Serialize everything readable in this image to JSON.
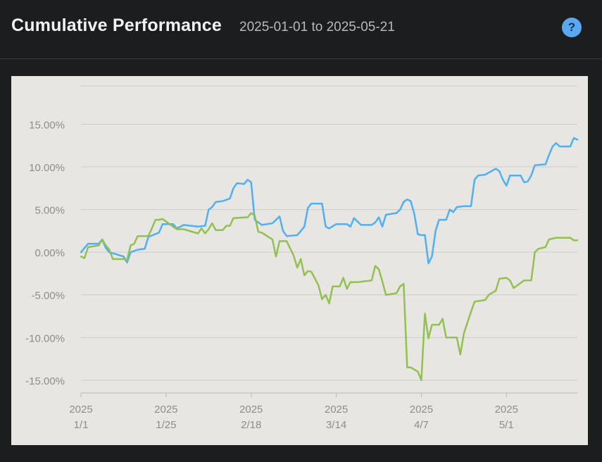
{
  "header": {
    "title": "Cumulative Performance",
    "date_range": "2025-01-01 to 2025-05-21",
    "help_icon": "question-mark-icon",
    "help_glyph": "?"
  },
  "chart_data": {
    "type": "line",
    "title": "",
    "xlabel": "",
    "ylabel": "",
    "y_unit": "%",
    "ylim": [
      -16.5,
      19.5
    ],
    "y_ticks": [
      -15,
      -10,
      -5,
      0,
      5,
      10,
      15
    ],
    "y_tick_labels": [
      "-15.00%",
      "-10.00%",
      "-5.00%",
      "0.00%",
      "5.00%",
      "10.00%",
      "15.00%"
    ],
    "xlim": [
      "2025-01-01",
      "2025-05-21"
    ],
    "x_ticks": [
      {
        "date": "2025-01-01",
        "year": "2025",
        "label": "1/1"
      },
      {
        "date": "2025-01-25",
        "year": "2025",
        "label": "1/25"
      },
      {
        "date": "2025-02-18",
        "year": "2025",
        "label": "2/18"
      },
      {
        "date": "2025-03-14",
        "year": "2025",
        "label": "3/14"
      },
      {
        "date": "2025-04-07",
        "year": "2025",
        "label": "4/7"
      },
      {
        "date": "2025-05-01",
        "year": "2025",
        "label": "5/1"
      }
    ],
    "grid": true,
    "legend": "none",
    "series": [
      {
        "color": "#4fb0f5",
        "points": [
          [
            "2025-01-01",
            0.0
          ],
          [
            "2025-01-03",
            1.0
          ],
          [
            "2025-01-06",
            1.0
          ],
          [
            "2025-01-07",
            1.5
          ],
          [
            "2025-01-08",
            0.5
          ],
          [
            "2025-01-09",
            0.0
          ],
          [
            "2025-01-13",
            -0.5
          ],
          [
            "2025-01-14",
            -1.2
          ],
          [
            "2025-01-15",
            0.0
          ],
          [
            "2025-01-17",
            0.3
          ],
          [
            "2025-01-19",
            0.4
          ],
          [
            "2025-01-20",
            1.8
          ],
          [
            "2025-01-23",
            2.3
          ],
          [
            "2025-01-24",
            3.3
          ],
          [
            "2025-01-27",
            3.3
          ],
          [
            "2025-01-28",
            2.8
          ],
          [
            "2025-01-30",
            3.2
          ],
          [
            "2025-02-03",
            3.0
          ],
          [
            "2025-02-05",
            3.1
          ],
          [
            "2025-02-06",
            5.0
          ],
          [
            "2025-02-07",
            5.3
          ],
          [
            "2025-02-08",
            5.9
          ],
          [
            "2025-02-10",
            6.0
          ],
          [
            "2025-02-12",
            6.3
          ],
          [
            "2025-02-13",
            7.5
          ],
          [
            "2025-02-14",
            8.1
          ],
          [
            "2025-02-16",
            8.0
          ],
          [
            "2025-02-17",
            8.5
          ],
          [
            "2025-02-18",
            8.2
          ],
          [
            "2025-02-19",
            3.8
          ],
          [
            "2025-02-20",
            3.5
          ],
          [
            "2025-02-21",
            3.2
          ],
          [
            "2025-02-24",
            3.4
          ],
          [
            "2025-02-26",
            4.2
          ],
          [
            "2025-02-27",
            2.5
          ],
          [
            "2025-02-28",
            1.9
          ],
          [
            "2025-03-03",
            2.0
          ],
          [
            "2025-03-05",
            3.0
          ],
          [
            "2025-03-06",
            5.2
          ],
          [
            "2025-03-07",
            5.7
          ],
          [
            "2025-03-10",
            5.7
          ],
          [
            "2025-03-11",
            3.0
          ],
          [
            "2025-03-12",
            2.8
          ],
          [
            "2025-03-14",
            3.3
          ],
          [
            "2025-03-17",
            3.3
          ],
          [
            "2025-03-18",
            3.0
          ],
          [
            "2025-03-19",
            4.0
          ],
          [
            "2025-03-21",
            3.2
          ],
          [
            "2025-03-24",
            3.2
          ],
          [
            "2025-03-25",
            3.5
          ],
          [
            "2025-03-26",
            4.1
          ],
          [
            "2025-03-27",
            3.0
          ],
          [
            "2025-03-28",
            4.4
          ],
          [
            "2025-03-31",
            4.6
          ],
          [
            "2025-04-01",
            5.0
          ],
          [
            "2025-04-02",
            5.9
          ],
          [
            "2025-04-03",
            6.2
          ],
          [
            "2025-04-04",
            6.0
          ],
          [
            "2025-04-05",
            4.5
          ],
          [
            "2025-04-06",
            2.1
          ],
          [
            "2025-04-07",
            2.0
          ],
          [
            "2025-04-08",
            2.0
          ],
          [
            "2025-04-09",
            -1.3
          ],
          [
            "2025-04-10",
            -0.5
          ],
          [
            "2025-04-11",
            2.5
          ],
          [
            "2025-04-12",
            3.8
          ],
          [
            "2025-04-14",
            3.8
          ],
          [
            "2025-04-15",
            5.0
          ],
          [
            "2025-04-16",
            4.7
          ],
          [
            "2025-04-17",
            5.3
          ],
          [
            "2025-04-19",
            5.4
          ],
          [
            "2025-04-21",
            5.4
          ],
          [
            "2025-04-22",
            8.5
          ],
          [
            "2025-04-23",
            9.0
          ],
          [
            "2025-04-25",
            9.1
          ],
          [
            "2025-04-28",
            9.8
          ],
          [
            "2025-04-29",
            9.5
          ],
          [
            "2025-04-30",
            8.5
          ],
          [
            "2025-05-01",
            7.8
          ],
          [
            "2025-05-02",
            9.0
          ],
          [
            "2025-05-05",
            9.0
          ],
          [
            "2025-05-06",
            8.2
          ],
          [
            "2025-05-07",
            8.3
          ],
          [
            "2025-05-08",
            9.0
          ],
          [
            "2025-05-09",
            10.2
          ],
          [
            "2025-05-12",
            10.3
          ],
          [
            "2025-05-13",
            11.4
          ],
          [
            "2025-05-14",
            12.4
          ],
          [
            "2025-05-15",
            12.8
          ],
          [
            "2025-05-16",
            12.4
          ],
          [
            "2025-05-19",
            12.4
          ],
          [
            "2025-05-20",
            13.4
          ],
          [
            "2025-05-21",
            13.2
          ]
        ]
      },
      {
        "color": "#92c051",
        "points": [
          [
            "2025-01-01",
            -0.5
          ],
          [
            "2025-01-02",
            -0.7
          ],
          [
            "2025-01-03",
            0.6
          ],
          [
            "2025-01-06",
            0.8
          ],
          [
            "2025-01-07",
            1.5
          ],
          [
            "2025-01-08",
            0.8
          ],
          [
            "2025-01-09",
            0.3
          ],
          [
            "2025-01-10",
            -0.8
          ],
          [
            "2025-01-13",
            -0.8
          ],
          [
            "2025-01-14",
            -0.9
          ],
          [
            "2025-01-15",
            0.8
          ],
          [
            "2025-01-16",
            1.0
          ],
          [
            "2025-01-17",
            1.9
          ],
          [
            "2025-01-20",
            1.9
          ],
          [
            "2025-01-21",
            2.8
          ],
          [
            "2025-01-22",
            3.8
          ],
          [
            "2025-01-23",
            3.8
          ],
          [
            "2025-01-24",
            3.9
          ],
          [
            "2025-01-27",
            3.0
          ],
          [
            "2025-01-28",
            2.7
          ],
          [
            "2025-01-30",
            2.7
          ],
          [
            "2025-02-03",
            2.2
          ],
          [
            "2025-02-04",
            2.8
          ],
          [
            "2025-02-05",
            2.2
          ],
          [
            "2025-02-06",
            2.7
          ],
          [
            "2025-02-07",
            3.4
          ],
          [
            "2025-02-08",
            2.6
          ],
          [
            "2025-02-10",
            2.6
          ],
          [
            "2025-02-11",
            3.1
          ],
          [
            "2025-02-12",
            3.1
          ],
          [
            "2025-02-13",
            4.0
          ],
          [
            "2025-02-17",
            4.1
          ],
          [
            "2025-02-18",
            4.6
          ],
          [
            "2025-02-19",
            4.3
          ],
          [
            "2025-02-20",
            2.4
          ],
          [
            "2025-02-21",
            2.3
          ],
          [
            "2025-02-24",
            1.5
          ],
          [
            "2025-02-25",
            -0.5
          ],
          [
            "2025-02-26",
            1.3
          ],
          [
            "2025-02-28",
            1.3
          ],
          [
            "2025-03-02",
            -0.4
          ],
          [
            "2025-03-03",
            -1.8
          ],
          [
            "2025-03-04",
            -0.8
          ],
          [
            "2025-03-05",
            -2.7
          ],
          [
            "2025-03-06",
            -2.2
          ],
          [
            "2025-03-07",
            -2.3
          ],
          [
            "2025-03-09",
            -3.9
          ],
          [
            "2025-03-10",
            -5.5
          ],
          [
            "2025-03-11",
            -5.0
          ],
          [
            "2025-03-12",
            -6.0
          ],
          [
            "2025-03-13",
            -4.0
          ],
          [
            "2025-03-15",
            -4.0
          ],
          [
            "2025-03-16",
            -3.0
          ],
          [
            "2025-03-17",
            -4.3
          ],
          [
            "2025-03-18",
            -3.5
          ],
          [
            "2025-03-20",
            -3.5
          ],
          [
            "2025-03-24",
            -3.3
          ],
          [
            "2025-03-25",
            -1.6
          ],
          [
            "2025-03-26",
            -2.0
          ],
          [
            "2025-03-27",
            -3.4
          ],
          [
            "2025-03-28",
            -5.0
          ],
          [
            "2025-03-31",
            -4.8
          ],
          [
            "2025-04-01",
            -4.0
          ],
          [
            "2025-04-02",
            -3.7
          ],
          [
            "2025-04-03",
            -13.5
          ],
          [
            "2025-04-04",
            -13.5
          ],
          [
            "2025-04-06",
            -14.0
          ],
          [
            "2025-04-07",
            -15.0
          ],
          [
            "2025-04-08",
            -7.2
          ],
          [
            "2025-04-09",
            -10.1
          ],
          [
            "2025-04-10",
            -8.5
          ],
          [
            "2025-04-12",
            -8.5
          ],
          [
            "2025-04-13",
            -7.8
          ],
          [
            "2025-04-14",
            -10.0
          ],
          [
            "2025-04-17",
            -10.0
          ],
          [
            "2025-04-18",
            -12.0
          ],
          [
            "2025-04-19",
            -9.5
          ],
          [
            "2025-04-21",
            -7.0
          ],
          [
            "2025-04-22",
            -5.8
          ],
          [
            "2025-04-25",
            -5.6
          ],
          [
            "2025-04-26",
            -5.0
          ],
          [
            "2025-04-28",
            -4.5
          ],
          [
            "2025-04-29",
            -3.1
          ],
          [
            "2025-05-01",
            -3.0
          ],
          [
            "2025-05-02",
            -3.3
          ],
          [
            "2025-05-03",
            -4.2
          ],
          [
            "2025-05-05",
            -3.6
          ],
          [
            "2025-05-06",
            -3.3
          ],
          [
            "2025-05-08",
            -3.3
          ],
          [
            "2025-05-09",
            0.0
          ],
          [
            "2025-05-10",
            0.4
          ],
          [
            "2025-05-12",
            0.6
          ],
          [
            "2025-05-13",
            1.5
          ],
          [
            "2025-05-15",
            1.7
          ],
          [
            "2025-05-19",
            1.7
          ],
          [
            "2025-05-20",
            1.4
          ],
          [
            "2025-05-21",
            1.4
          ]
        ]
      }
    ]
  }
}
